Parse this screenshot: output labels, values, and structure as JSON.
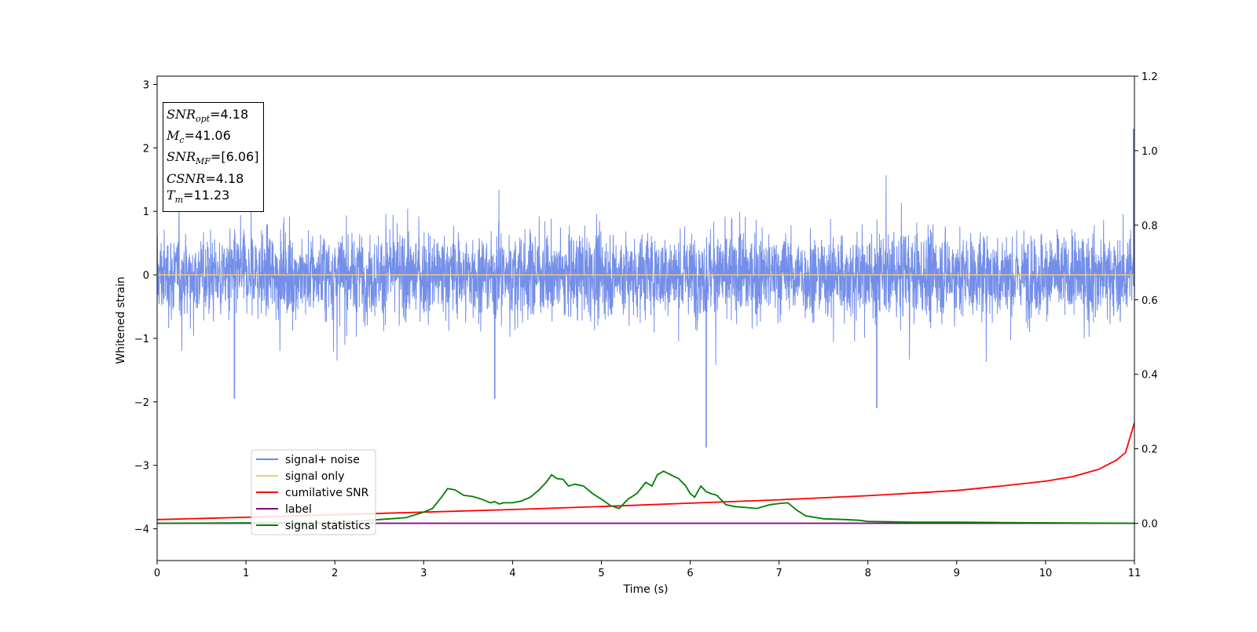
{
  "chart_data": {
    "type": "line",
    "xlabel": "Time (s)",
    "ylabel": "Whitened strain",
    "xlim": [
      0,
      11
    ],
    "ylim_left": [
      -4.5,
      3.13
    ],
    "ylim_right": [
      -0.1,
      1.2
    ],
    "x_ticks": [
      "0",
      "1",
      "2",
      "3",
      "4",
      "5",
      "6",
      "7",
      "8",
      "9",
      "10",
      "11"
    ],
    "y_left_ticks": [
      {
        "v": 3,
        "t": "3"
      },
      {
        "v": 2,
        "t": "2"
      },
      {
        "v": 1,
        "t": "1"
      },
      {
        "v": 0,
        "t": "0"
      },
      {
        "v": -1,
        "t": "−1"
      },
      {
        "v": -2,
        "t": "−2"
      },
      {
        "v": -3,
        "t": "−3"
      },
      {
        "v": -4,
        "t": "−4"
      }
    ],
    "y_right_ticks": [
      {
        "v": 1.2,
        "t": "1.2"
      },
      {
        "v": 1.0,
        "t": "1.0"
      },
      {
        "v": 0.8,
        "t": "0.8"
      },
      {
        "v": 0.6,
        "t": "0.6"
      },
      {
        "v": 0.4,
        "t": "0.4"
      },
      {
        "v": 0.2,
        "t": "0.2"
      },
      {
        "v": 0.0,
        "t": "0.0"
      }
    ],
    "series": [
      {
        "name": "signal+ noise",
        "color": "#6d89e8",
        "axis": "left",
        "note_values": "dense whitened noise, roughly −1.2 to +1.5 with spikes up to ~2.3 and down to ~−2.7 (at t≈6.18s)",
        "spikes": [
          [
            6.18,
            -2.72
          ],
          [
            10.99,
            2.3
          ],
          [
            8.1,
            -2.1
          ],
          [
            3.8,
            -1.95
          ],
          [
            0.87,
            -1.95
          ]
        ]
      },
      {
        "name": "signal only",
        "color": "#f5c77a",
        "axis": "left",
        "x": [
          0,
          2,
          4,
          6,
          8,
          9.5,
          10.5,
          11
        ],
        "y": [
          0,
          0,
          0,
          0,
          0,
          0,
          0,
          0
        ]
      },
      {
        "name": "cumilative SNR",
        "color": "#ff0000",
        "axis": "right",
        "x": [
          0,
          1,
          2,
          3,
          4,
          5,
          6,
          7,
          8,
          9,
          9.5,
          10,
          10.3,
          10.6,
          10.8,
          10.9,
          11
        ],
        "y": [
          0.01,
          0.016,
          0.023,
          0.03,
          0.037,
          0.045,
          0.054,
          0.063,
          0.074,
          0.088,
          0.1,
          0.113,
          0.125,
          0.145,
          0.17,
          0.19,
          0.27
        ]
      },
      {
        "name": "label",
        "color": "#800080",
        "axis": "right",
        "x": [
          0,
          11
        ],
        "y": [
          0,
          0
        ]
      },
      {
        "name": "signal statistics",
        "color": "#008000",
        "axis": "right",
        "x": [
          0,
          2.0,
          2.5,
          2.8,
          3.0,
          3.1,
          3.2,
          3.27,
          3.35,
          3.45,
          3.55,
          3.65,
          3.75,
          3.8,
          3.85,
          3.9,
          4.0,
          4.1,
          4.2,
          4.3,
          4.38,
          4.44,
          4.5,
          4.57,
          4.63,
          4.7,
          4.8,
          4.9,
          5.0,
          5.1,
          5.2,
          5.3,
          5.4,
          5.5,
          5.57,
          5.63,
          5.7,
          5.78,
          5.87,
          5.95,
          6.0,
          6.05,
          6.12,
          6.18,
          6.23,
          6.3,
          6.4,
          6.5,
          6.6,
          6.75,
          6.9,
          7.0,
          7.1,
          7.2,
          7.3,
          7.5,
          7.75,
          7.9,
          8.0,
          8.5,
          9.0,
          9.5,
          11
        ],
        "y": [
          0,
          0.002,
          0.01,
          0.015,
          0.03,
          0.04,
          0.07,
          0.093,
          0.09,
          0.075,
          0.072,
          0.065,
          0.055,
          0.058,
          0.052,
          0.055,
          0.055,
          0.06,
          0.07,
          0.09,
          0.11,
          0.13,
          0.12,
          0.118,
          0.1,
          0.105,
          0.1,
          0.08,
          0.065,
          0.048,
          0.04,
          0.065,
          0.08,
          0.11,
          0.1,
          0.13,
          0.14,
          0.13,
          0.12,
          0.1,
          0.08,
          0.07,
          0.1,
          0.085,
          0.08,
          0.075,
          0.05,
          0.045,
          0.043,
          0.04,
          0.05,
          0.053,
          0.055,
          0.035,
          0.02,
          0.012,
          0.01,
          0.008,
          0.005,
          0.003,
          0.003,
          0.002,
          0.0
        ]
      }
    ],
    "legend": {
      "placement": "lower-left",
      "entries": [
        {
          "label": "signal+ noise",
          "color": "#6d89e8"
        },
        {
          "label": "signal only",
          "color": "#f5c77a"
        },
        {
          "label": "cumilative SNR",
          "color": "#ff0000"
        },
        {
          "label": "label",
          "color": "#800080"
        },
        {
          "label": "signal statistics",
          "color": "#008000"
        }
      ]
    }
  },
  "info_box": {
    "snr_opt_value": "=4.18",
    "mc_value": "=41.06",
    "snr_mf_value": "=[6.06]",
    "csnr_value": "=4.18",
    "tm_value": "=11.23"
  }
}
